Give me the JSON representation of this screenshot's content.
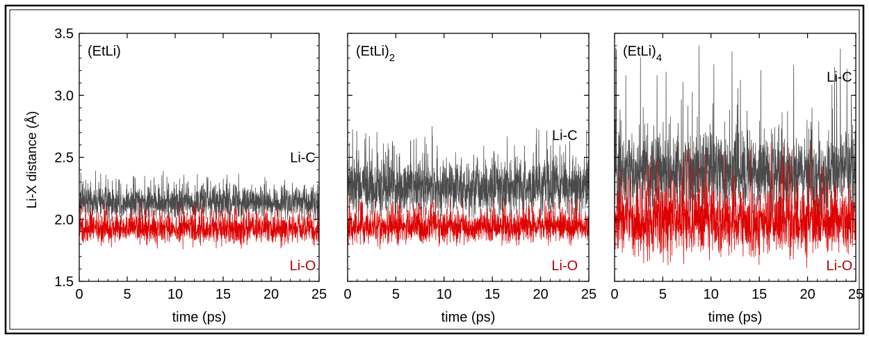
{
  "figure": {
    "ylabel": "Li-X distance (Å)",
    "xlabel": "time (ps)"
  },
  "colors": {
    "li_c": "#4a4a4a",
    "li_o": "#dd0000",
    "li_o_label": "#b00000",
    "text": "#000000"
  },
  "chart_data": [
    {
      "type": "line",
      "title": "(EtLi)",
      "title_sub": "",
      "xlabel": "time (ps)",
      "ylabel": "Li-X distance (Å)",
      "xlim": [
        0,
        25
      ],
      "ylim": [
        1.5,
        3.5
      ],
      "xticks": [
        0,
        5,
        10,
        15,
        20,
        25
      ],
      "yticks": [
        1.5,
        2.0,
        2.5,
        3.0,
        3.5
      ],
      "grid": false,
      "series": [
        {
          "name": "Li-C",
          "mean": 2.12,
          "band": [
            2.02,
            2.25
          ],
          "max_spike": 2.39,
          "label_pos": [
            23.3,
            2.5
          ]
        },
        {
          "name": "Li-O",
          "mean": 1.91,
          "band": [
            1.82,
            2.02
          ],
          "max_spike": 2.1,
          "label_pos": [
            23.3,
            1.63
          ]
        }
      ]
    },
    {
      "type": "line",
      "title": "(EtLi)",
      "title_sub": "2",
      "xlabel": "time (ps)",
      "ylabel": "",
      "xlim": [
        0,
        25
      ],
      "ylim": [
        1.5,
        3.5
      ],
      "xticks": [
        0,
        5,
        10,
        15,
        20,
        25
      ],
      "yticks": [
        1.5,
        2.0,
        2.5,
        3.0,
        3.5
      ],
      "grid": false,
      "series": [
        {
          "name": "Li-C",
          "mean": 2.25,
          "band": [
            2.07,
            2.45
          ],
          "max_spike": 2.75,
          "label_pos": [
            22.5,
            2.68
          ]
        },
        {
          "name": "Li-O",
          "mean": 1.93,
          "band": [
            1.83,
            2.05
          ],
          "max_spike": 2.15,
          "label_pos": [
            22.5,
            1.63
          ]
        }
      ]
    },
    {
      "type": "line",
      "title": "(EtLi)",
      "title_sub": "4",
      "xlabel": "time (ps)",
      "ylabel": "",
      "xlim": [
        0,
        25
      ],
      "ylim": [
        1.5,
        3.5
      ],
      "xticks": [
        0,
        5,
        10,
        15,
        20,
        25
      ],
      "yticks": [
        1.5,
        2.0,
        2.5,
        3.0,
        3.5
      ],
      "grid": false,
      "series": [
        {
          "name": "Li-C",
          "mean": 2.33,
          "band": [
            2.1,
            2.65
          ],
          "max_spike": 3.4,
          "label_pos": [
            23.3,
            3.15
          ]
        },
        {
          "name": "Li-O",
          "mean": 1.93,
          "band": [
            1.75,
            2.2
          ],
          "max_spike": 2.62,
          "label_pos": [
            23.3,
            1.63
          ]
        }
      ]
    }
  ]
}
